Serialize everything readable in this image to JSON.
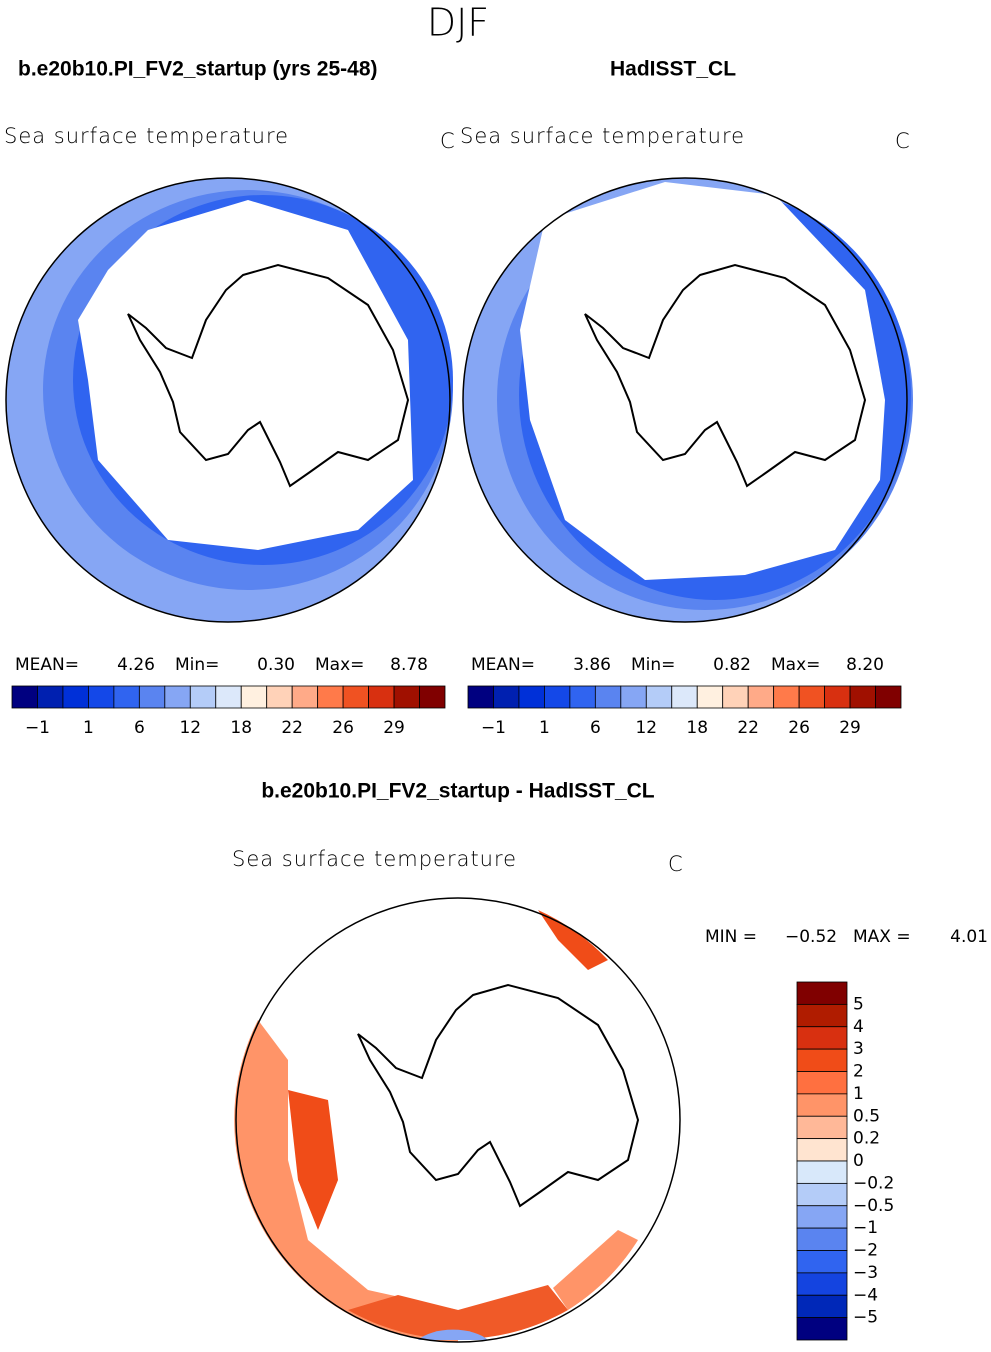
{
  "title": "DJF",
  "panels": [
    {
      "title": "b.e20b10.PI_FV2_startup (yrs 25-48)",
      "variable": "Sea surface temperature",
      "units": "C",
      "stats": [
        {
          "label": "MEAN=",
          "value": "4.26"
        },
        {
          "label": "Min=",
          "value": "0.30"
        },
        {
          "label": "Max=",
          "value": "8.78"
        }
      ]
    },
    {
      "title": "HadISST_CL",
      "variable": "Sea surface temperature",
      "units": "C",
      "stats": [
        {
          "label": "MEAN=",
          "value": "3.86"
        },
        {
          "label": "Min=",
          "value": "0.82"
        },
        {
          "label": "Max=",
          "value": "8.20"
        }
      ]
    }
  ],
  "colorbar": {
    "labels": [
      "−1",
      "1",
      "6",
      "12",
      "18",
      "22",
      "26",
      "29"
    ],
    "colors": [
      "#000080",
      "#0020b0",
      "#0030d8",
      "#1448e8",
      "#3064f0",
      "#5a84f0",
      "#86a6f4",
      "#b4ccf8",
      "#dce8fa",
      "#fff0e0",
      "#ffd2b8",
      "#ffaa88",
      "#ff7a4a",
      "#f05222",
      "#d83010",
      "#a01000",
      "#800000"
    ]
  },
  "difference": {
    "title": "b.e20b10.PI_FV2_startup - HadISST_CL",
    "variable": "Sea surface temperature",
    "units": "C",
    "stats": [
      {
        "label": "MIN =",
        "value": "−0.52"
      },
      {
        "label": "MAX =",
        "value": "4.01"
      }
    ],
    "colorbar": {
      "labels": [
        "5",
        "4",
        "3",
        "2",
        "1",
        "0.5",
        "0.2",
        "0",
        "−0.2",
        "−0.5",
        "−1",
        "−2",
        "−3",
        "−4",
        "−5"
      ],
      "colors": [
        "#800000",
        "#b01c00",
        "#d83010",
        "#f04c18",
        "#ff7040",
        "#ff9468",
        "#ffb898",
        "#ffe4d0",
        "#d8e8fa",
        "#b4ccf8",
        "#86a6f4",
        "#5a84f0",
        "#3064f0",
        "#1444e0",
        "#0028b8",
        "#000080"
      ]
    }
  }
}
